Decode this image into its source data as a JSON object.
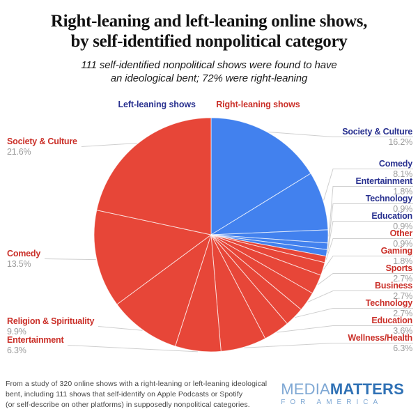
{
  "header": {
    "title_lines": [
      "Right-leaning and left-leaning online shows,",
      "by self-identified nonpolitical category"
    ],
    "subtitle_lines": [
      "111 self-identified nonpolitical shows were found to have",
      "an ideological bent; 72% were right-leaning"
    ]
  },
  "legend": {
    "left_label": "Left-leaning shows",
    "right_label": "Right-leaning shows"
  },
  "chart_data": {
    "type": "pie",
    "title": "Right-leaning and left-leaning online shows, by self-identified nonpolitical category",
    "start_angle": "12 o'clock, clockwise",
    "total_shows": 111,
    "right_leaning_share": "72%",
    "colors": {
      "left": "#4281ee",
      "right": "#e74638"
    },
    "label_colors": {
      "left": "#28308f",
      "right": "#ca2f28"
    },
    "pct_color": "#9c9c9c",
    "leader_color": "#cfcfcf",
    "slices": [
      {
        "label": "Society & Culture",
        "value": 16.2,
        "group": "left"
      },
      {
        "label": "Comedy",
        "value": 8.1,
        "group": "left"
      },
      {
        "label": "Entertainment",
        "value": 1.8,
        "group": "left"
      },
      {
        "label": "Technology",
        "value": 0.9,
        "group": "left"
      },
      {
        "label": "Education",
        "value": 0.9,
        "group": "left"
      },
      {
        "label": "Other",
        "value": 0.9,
        "group": "right"
      },
      {
        "label": "Gaming",
        "value": 1.8,
        "group": "right"
      },
      {
        "label": "Sports",
        "value": 2.7,
        "group": "right"
      },
      {
        "label": "Business",
        "value": 2.7,
        "group": "right"
      },
      {
        "label": "Technology",
        "value": 2.7,
        "group": "right"
      },
      {
        "label": "Education",
        "value": 3.6,
        "group": "right"
      },
      {
        "label": "Wellness/Health",
        "value": 6.3,
        "group": "right"
      },
      {
        "label": "Entertainment",
        "value": 6.3,
        "group": "right"
      },
      {
        "label": "Religion & Spirituality",
        "value": 9.9,
        "group": "right"
      },
      {
        "label": "Comedy",
        "value": 13.5,
        "group": "right"
      },
      {
        "label": "Society & Culture",
        "value": 21.6,
        "group": "right"
      }
    ]
  },
  "footer": {
    "note_lines": [
      "From a study of 320 online shows with a right-leaning or left-leaning ideological",
      "bent, including 111 shows that self-identify on Apple Podcasts or Spotify",
      "(or self-describe on other platforms) in supposedly nonpolitical categories."
    ],
    "logo": {
      "media": "MEDIA",
      "matters": "MATTERS",
      "tagline": "FOR AMERICA"
    }
  }
}
